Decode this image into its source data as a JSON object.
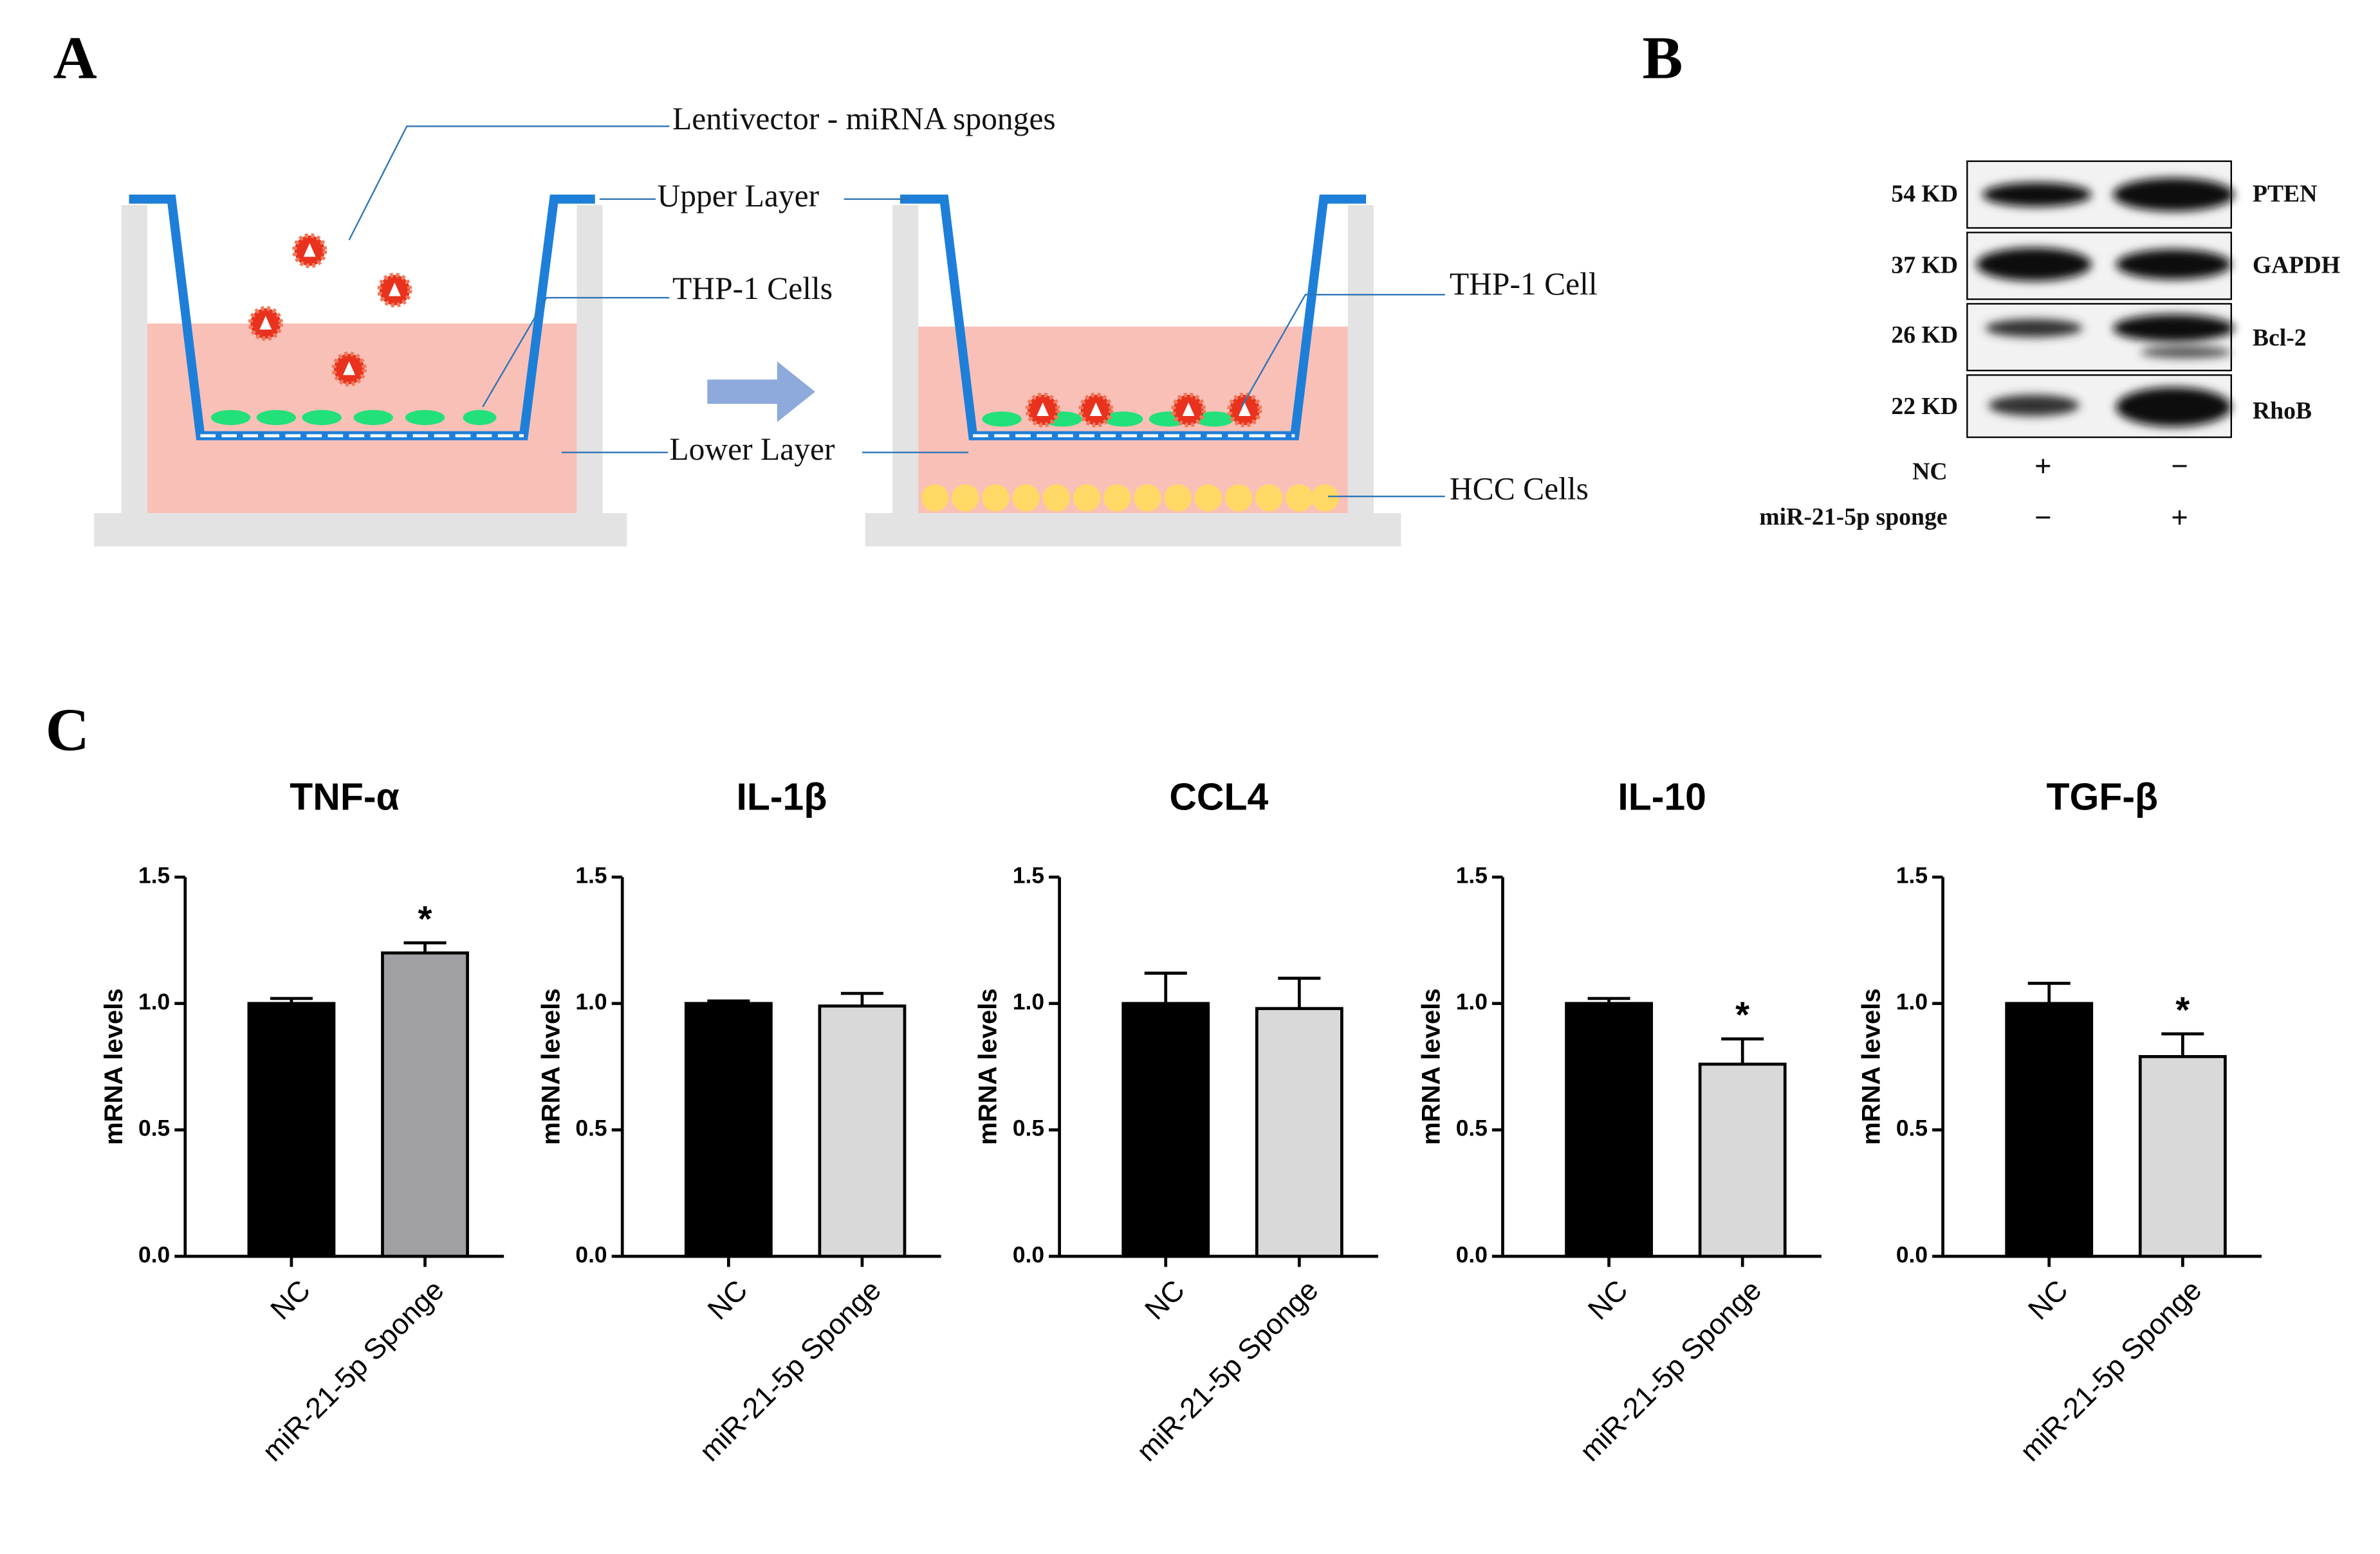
{
  "panel_labels": [
    "A",
    "B",
    "C"
  ],
  "diagram": {
    "labels": [
      "Lentivector - miRNA sponges",
      "Upper Layer",
      "THP-1 Cells",
      "Lower Layer",
      "THP-1 Cell",
      "HCC Cells"
    ]
  },
  "blot": {
    "proteins": [
      {
        "size": "54 KD",
        "name": "PTEN"
      },
      {
        "size": "37 KD",
        "name": "GAPDH"
      },
      {
        "size": "26 KD",
        "name": "Bcl-2"
      },
      {
        "size": "22 KD",
        "name": "RhoB"
      }
    ],
    "rows": [
      {
        "label": "NC",
        "marks": [
          "+",
          "−"
        ]
      },
      {
        "label": "miR-21-5p sponge",
        "marks": [
          "−",
          "+"
        ]
      }
    ]
  },
  "chart_data": [
    {
      "type": "bar",
      "title": "TNF-α",
      "ylabel": "mRNA levels",
      "categories": [
        "NC",
        "miR-21-5p Sponge"
      ],
      "values": [
        1.0,
        1.2
      ],
      "errors": [
        0.02,
        0.04
      ],
      "colors": [
        "#000000",
        "#a09fa4"
      ],
      "annotations": [
        null,
        "*"
      ],
      "ylim": [
        0,
        1.5
      ],
      "yticks": [
        {
          "value": 0,
          "label": "0.0"
        },
        {
          "value": 0.5,
          "label": "0.5"
        },
        {
          "value": 1,
          "label": "1.0"
        },
        {
          "value": 1.5,
          "label": "1.5"
        }
      ]
    },
    {
      "type": "bar",
      "title": "IL-1β",
      "ylabel": "mRNA levels",
      "categories": [
        "NC",
        "miR-21-5p Sponge"
      ],
      "values": [
        1.0,
        0.99
      ],
      "errors": [
        0.01,
        0.05
      ],
      "colors": [
        "#000000",
        "#d9d9d9"
      ],
      "annotations": [
        null,
        null
      ],
      "ylim": [
        0,
        1.5
      ],
      "yticks": [
        {
          "value": 0,
          "label": "0.0"
        },
        {
          "value": 0.5,
          "label": "0.5"
        },
        {
          "value": 1,
          "label": "1.0"
        },
        {
          "value": 1.5,
          "label": "1.5"
        }
      ]
    },
    {
      "type": "bar",
      "title": "CCL4",
      "ylabel": "mRNA levels",
      "categories": [
        "NC",
        "miR-21-5p Sponge"
      ],
      "values": [
        1.0,
        0.98
      ],
      "errors": [
        0.12,
        0.12
      ],
      "colors": [
        "#000000",
        "#d9d9d9"
      ],
      "annotations": [
        null,
        null
      ],
      "ylim": [
        0,
        1.5
      ],
      "yticks": [
        {
          "value": 0,
          "label": "0.0"
        },
        {
          "value": 0.5,
          "label": "0.5"
        },
        {
          "value": 1,
          "label": "1.0"
        },
        {
          "value": 1.5,
          "label": "1.5"
        }
      ]
    },
    {
      "type": "bar",
      "title": "IL-10",
      "ylabel": "mRNA levels",
      "categories": [
        "NC",
        "miR-21-5p Sponge"
      ],
      "values": [
        1.0,
        0.76
      ],
      "errors": [
        0.02,
        0.1
      ],
      "colors": [
        "#000000",
        "#d9d9d9"
      ],
      "annotations": [
        null,
        "*"
      ],
      "ylim": [
        0,
        1.5
      ],
      "yticks": [
        {
          "value": 0,
          "label": "0.0"
        },
        {
          "value": 0.5,
          "label": "0.5"
        },
        {
          "value": 1,
          "label": "1.0"
        },
        {
          "value": 1.5,
          "label": "1.5"
        }
      ]
    },
    {
      "type": "bar",
      "title": "TGF-β",
      "ylabel": "mRNA levels",
      "categories": [
        "NC",
        "miR-21-5p Sponge"
      ],
      "values": [
        1.0,
        0.79
      ],
      "errors": [
        0.08,
        0.09
      ],
      "colors": [
        "#000000",
        "#d9d9d9"
      ],
      "annotations": [
        null,
        "*"
      ],
      "ylim": [
        0,
        1.5
      ],
      "yticks": [
        {
          "value": 0,
          "label": "0.0"
        },
        {
          "value": 0.5,
          "label": "0.5"
        },
        {
          "value": 1,
          "label": "1.0"
        },
        {
          "value": 1.5,
          "label": "1.5"
        }
      ]
    }
  ]
}
